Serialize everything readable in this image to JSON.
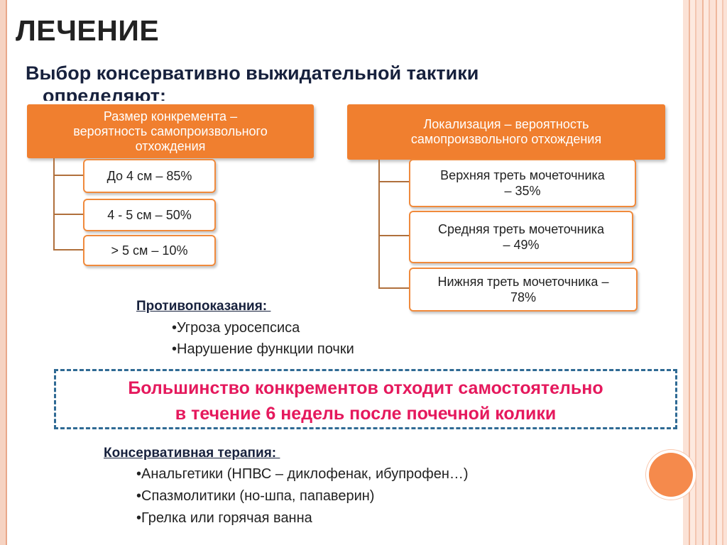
{
  "slide": {
    "title": "ЛЕЧЕНИЕ",
    "subtitle": "Выбор консервативно выжидательной тактики",
    "subtitle_line2": "определяют:"
  },
  "left_tree": {
    "header_lines": [
      "Размер конкремента –",
      "вероятность самопроизвольного",
      "отхождения"
    ],
    "items": [
      "До 4 см – 85%",
      "4 - 5 см – 50%",
      "> 5 см – 10%"
    ]
  },
  "right_tree": {
    "header_lines": [
      "Локализация – вероятность",
      "самопроизвольного отхождения"
    ],
    "items": [
      [
        "Верхняя треть мочеточника",
        "– 35%"
      ],
      [
        "Средняя треть мочеточника",
        "– 49%"
      ],
      [
        "Нижняя треть мочеточника –",
        "78%"
      ]
    ]
  },
  "contraindications": {
    "heading": "Противопоказания: ",
    "items": [
      "•Угроза уросепсиса",
      "•Нарушение функции почки"
    ]
  },
  "highlight": {
    "lines": [
      "Большинство конкрементов отходит самостоятельно",
      "в течение 6 недель после почечной колики"
    ],
    "color": "#e5195d"
  },
  "therapy": {
    "heading": "Консервативная терапия: ",
    "items": [
      "•Анальгетики (НПВС – диклофенак, ибупрофен…)",
      "•Спазмолитики (но-шпа, папаверин)",
      "•Грелка или горячая ванна"
    ]
  },
  "colors": {
    "accent": "#f07f2f",
    "heading_text": "#17213d",
    "dashed_border": "#2f6a94"
  }
}
